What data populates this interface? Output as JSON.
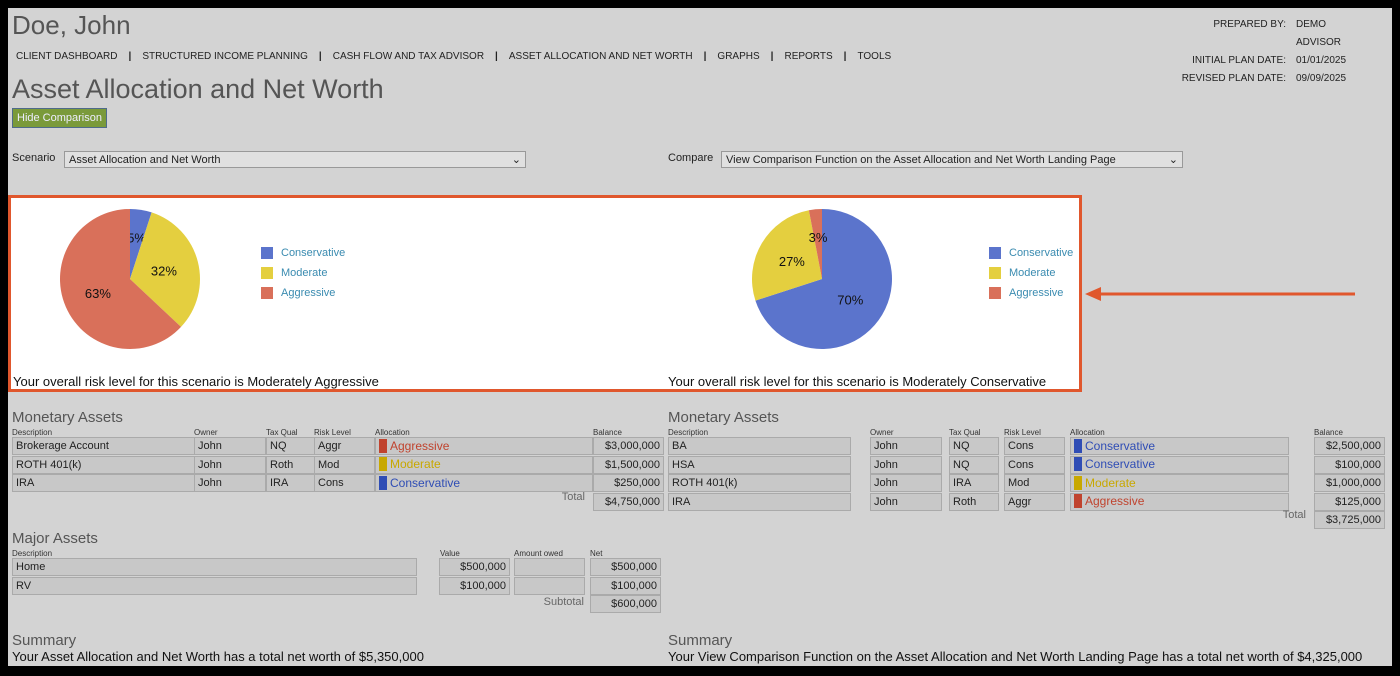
{
  "client_name": "Doe, John",
  "nav": [
    "CLIENT DASHBOARD",
    "STRUCTURED INCOME PLANNING",
    "CASH FLOW AND TAX ADVISOR",
    "ASSET ALLOCATION AND NET WORTH",
    "GRAPHS",
    "REPORTS",
    "TOOLS"
  ],
  "meta": {
    "prepared_by_label": "PREPARED BY:",
    "prepared_by": "DEMO ADVISOR",
    "initial_label": "INITIAL PLAN DATE:",
    "initial": "01/01/2025",
    "revised_label": "REVISED PLAN DATE:",
    "revised": "09/09/2025"
  },
  "page_title": "Asset Allocation and Net Worth",
  "hide_button": "Hide Comparison",
  "scenario": {
    "label": "Scenario",
    "value": "Asset Allocation and Net Worth"
  },
  "compare": {
    "label": "Compare",
    "value": "View Comparison Function on the Asset Allocation and Net Worth Landing Page"
  },
  "colors": {
    "conservative": "#5b74cc",
    "moderate": "#e4cf3f",
    "aggressive": "#d9705a",
    "accent": "#e0572d"
  },
  "legend": [
    "Conservative",
    "Moderate",
    "Aggressive"
  ],
  "chart_data": [
    {
      "type": "pie",
      "labels": [
        "Conservative",
        "Moderate",
        "Aggressive"
      ],
      "values": [
        5,
        32,
        63
      ],
      "data_labels": [
        "5%",
        "32%",
        "63%"
      ]
    },
    {
      "type": "pie",
      "labels": [
        "Conservative",
        "Moderate",
        "Aggressive"
      ],
      "values": [
        70,
        27,
        3
      ],
      "data_labels": [
        "70%",
        "27%",
        "3%"
      ]
    }
  ],
  "left": {
    "risk_text": "Your overall risk level for this scenario is Moderately Aggressive",
    "monetary_title": "Monetary Assets",
    "headers": [
      "Description",
      "Owner",
      "Tax Qual",
      "Risk Level",
      "Allocation",
      "Balance"
    ],
    "rows": [
      [
        "Brokerage Account",
        "John",
        "NQ",
        "Aggr",
        "Aggressive",
        "$3,000,000"
      ],
      [
        " ROTH 401(k)",
        "John",
        "Roth",
        "Mod",
        "Moderate",
        "$1,500,000"
      ],
      [
        "IRA",
        "John",
        "IRA",
        "Cons",
        "Conservative",
        "$250,000"
      ]
    ],
    "total_label": "Total",
    "total": "$4,750,000",
    "major_title": "Major Assets",
    "major_headers": [
      "Description",
      "Value",
      "Amount owed",
      "Net"
    ],
    "major_rows": [
      [
        "Home",
        "$500,000",
        "",
        "$500,000"
      ],
      [
        "RV",
        "$100,000",
        "",
        "$100,000"
      ]
    ],
    "subtotal_label": "Subtotal",
    "subtotal": "$600,000",
    "summary_title": "Summary",
    "summary": "Your Asset Allocation and Net Worth has a total net worth of $5,350,000"
  },
  "right": {
    "risk_text": "Your overall risk level for this scenario is Moderately Conservative",
    "monetary_title": "Monetary Assets",
    "headers": [
      "Description",
      "Owner",
      "Tax Qual",
      "Risk Level",
      "Allocation",
      "Balance"
    ],
    "rows": [
      [
        "BA",
        "John",
        "NQ",
        "Cons",
        "Conservative",
        "$2,500,000"
      ],
      [
        "HSA",
        "John",
        "NQ",
        "Cons",
        "Conservative",
        "$100,000"
      ],
      [
        "ROTH 401(k)",
        "John",
        "IRA",
        "Mod",
        "Moderate",
        "$1,000,000"
      ],
      [
        "IRA",
        "John",
        "Roth",
        "Aggr",
        "Aggressive",
        "$125,000"
      ]
    ],
    "total_label": "Total",
    "total": "$3,725,000",
    "summary_title": "Summary",
    "summary": "Your View Comparison Function on the Asset Allocation and Net Worth Landing Page has a total net worth of $4,325,000"
  }
}
